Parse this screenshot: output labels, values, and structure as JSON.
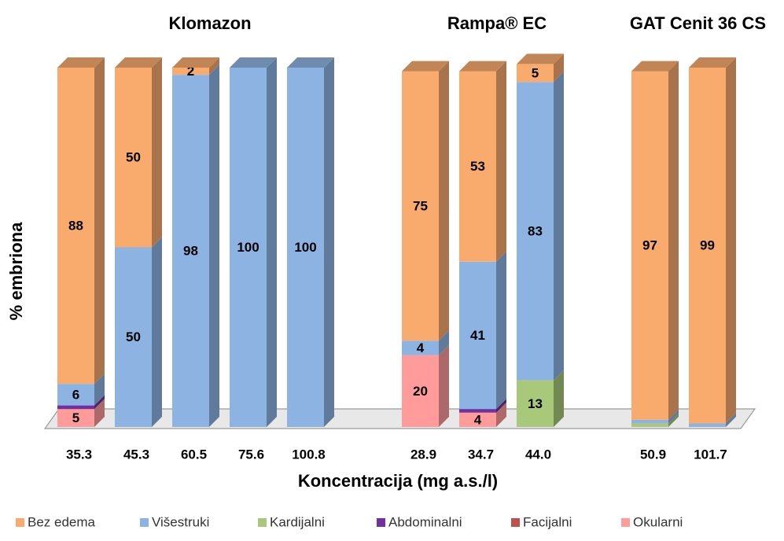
{
  "chart_data": {
    "type": "bar3d_stacked",
    "y_axis_label": "% embriona",
    "x_axis_label": "Koncentracija (mg a.s./l)",
    "ylim": [
      0,
      100
    ],
    "groups": [
      {
        "title": "Klomazon",
        "categories": [
          "35.3",
          "45.3",
          "60.5",
          "75.6",
          "100.8"
        ]
      },
      {
        "title": "Rampa® EC",
        "categories": [
          "28.9",
          "34.7",
          "44.0"
        ]
      },
      {
        "title": "GAT Cenit 36 CS",
        "categories": [
          "50.9",
          "101.7"
        ]
      }
    ],
    "series": [
      {
        "name": "Okularni",
        "color": "#FF9B9B",
        "values": [
          5,
          0,
          0,
          0,
          0,
          20,
          4,
          0,
          0,
          0
        ]
      },
      {
        "name": "Facijalni",
        "color": "#C0504D",
        "values": [
          0,
          0,
          0,
          0,
          0,
          0,
          0,
          0,
          0,
          0
        ]
      },
      {
        "name": "Abdominalni",
        "color": "#7030A0",
        "values": [
          1,
          0,
          0,
          0,
          0,
          0,
          1,
          0,
          0,
          0
        ]
      },
      {
        "name": "Kardijalni",
        "color": "#A9C97A",
        "values": [
          0,
          0,
          0,
          0,
          0,
          0,
          0,
          13,
          1,
          0
        ]
      },
      {
        "name": "Višestruki",
        "color": "#8CB3E2",
        "values": [
          6,
          50,
          98,
          100,
          100,
          4,
          41,
          83,
          1,
          1
        ]
      },
      {
        "name": "Bez edema",
        "color": "#F9AB6E",
        "values": [
          88,
          50,
          2,
          0,
          0,
          75,
          53,
          5,
          97,
          99
        ]
      }
    ],
    "data_labels": true,
    "legend": "bottom"
  }
}
